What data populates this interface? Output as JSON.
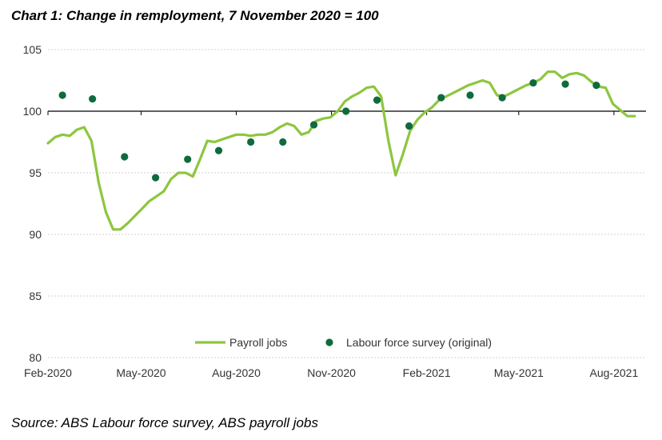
{
  "title": "Chart 1: Change in remployment, 7 November 2020 = 100",
  "source": "Source: ABS Labour force survey, ABS payroll jobs",
  "colors": {
    "payroll_line": "#8dc63f",
    "lfs_dot": "#0f6b3c",
    "grid": "#d0d0d0",
    "baseline": "#000000"
  },
  "chart_data": {
    "type": "line",
    "title": "Chart 1: Change in remployment, 7 November 2020 = 100",
    "xlabel": "",
    "ylabel": "",
    "ylim": [
      80,
      105
    ],
    "yticks": [
      80,
      85,
      90,
      95,
      100,
      105
    ],
    "ytick_labels": [
      "80",
      "85",
      "90",
      "95",
      "100",
      "105"
    ],
    "x_axis": "date",
    "xlim": [
      "2020-02-01",
      "2021-09-01"
    ],
    "xticks": [
      "2020-02-01",
      "2020-05-01",
      "2020-08-01",
      "2020-11-01",
      "2021-02-01",
      "2021-05-01",
      "2021-08-01"
    ],
    "xtick_labels": [
      "Feb-2020",
      "May-2020",
      "Aug-2020",
      "Nov-2020",
      "Feb-2021",
      "May-2021",
      "Aug-2021"
    ],
    "grid": true,
    "reference_line": 100,
    "legend_position": "bottom-center",
    "series": [
      {
        "name": "Payroll jobs",
        "style": "line",
        "x": [
          "2020-02-01",
          "2020-02-08",
          "2020-02-15",
          "2020-02-22",
          "2020-02-29",
          "2020-03-07",
          "2020-03-14",
          "2020-03-21",
          "2020-03-28",
          "2020-04-04",
          "2020-04-11",
          "2020-04-18",
          "2020-04-25",
          "2020-05-02",
          "2020-05-09",
          "2020-05-16",
          "2020-05-23",
          "2020-05-30",
          "2020-06-06",
          "2020-06-13",
          "2020-06-20",
          "2020-06-27",
          "2020-07-04",
          "2020-07-11",
          "2020-07-18",
          "2020-07-25",
          "2020-08-01",
          "2020-08-08",
          "2020-08-15",
          "2020-08-22",
          "2020-08-29",
          "2020-09-05",
          "2020-09-12",
          "2020-09-19",
          "2020-09-26",
          "2020-10-03",
          "2020-10-10",
          "2020-10-17",
          "2020-10-24",
          "2020-10-31",
          "2020-11-07",
          "2020-11-14",
          "2020-11-21",
          "2020-11-28",
          "2020-12-05",
          "2020-12-12",
          "2020-12-19",
          "2020-12-26",
          "2021-01-02",
          "2021-01-09",
          "2021-01-16",
          "2021-01-23",
          "2021-01-30",
          "2021-02-06",
          "2021-02-13",
          "2021-02-20",
          "2021-02-27",
          "2021-03-06",
          "2021-03-13",
          "2021-03-20",
          "2021-03-27",
          "2021-04-03",
          "2021-04-10",
          "2021-04-17",
          "2021-04-24",
          "2021-05-01",
          "2021-05-08",
          "2021-05-15",
          "2021-05-22",
          "2021-05-29",
          "2021-06-05",
          "2021-06-12",
          "2021-06-19",
          "2021-06-26",
          "2021-07-03",
          "2021-07-10",
          "2021-07-17",
          "2021-07-24",
          "2021-07-31",
          "2021-08-07",
          "2021-08-14",
          "2021-08-21"
        ],
        "y": [
          97.4,
          97.9,
          98.1,
          98.0,
          98.5,
          98.7,
          97.6,
          94.2,
          91.8,
          90.4,
          90.4,
          90.9,
          91.5,
          92.1,
          92.7,
          93.1,
          93.5,
          94.5,
          95.0,
          95.0,
          94.7,
          96.1,
          97.6,
          97.5,
          97.7,
          97.9,
          98.1,
          98.1,
          98.0,
          98.1,
          98.1,
          98.3,
          98.7,
          99.0,
          98.8,
          98.1,
          98.3,
          99.2,
          99.4,
          99.5,
          100.0,
          100.8,
          101.2,
          101.5,
          101.9,
          102.0,
          101.2,
          97.6,
          94.8,
          96.5,
          98.4,
          99.3,
          99.9,
          100.3,
          100.9,
          101.2,
          101.5,
          101.8,
          102.1,
          102.3,
          102.5,
          102.3,
          101.3,
          101.2,
          101.5,
          101.8,
          102.1,
          102.3,
          102.6,
          103.2,
          103.2,
          102.7,
          103.0,
          103.1,
          102.9,
          102.4,
          102.0,
          101.9,
          100.6,
          100.1,
          99.6,
          99.6
        ]
      },
      {
        "name": "Labour force survey (original)",
        "style": "markers",
        "x": [
          "2020-02-15",
          "2020-03-15",
          "2020-04-15",
          "2020-05-15",
          "2020-06-15",
          "2020-07-15",
          "2020-08-15",
          "2020-09-15",
          "2020-10-15",
          "2020-11-15",
          "2020-12-15",
          "2021-01-15",
          "2021-02-15",
          "2021-03-15",
          "2021-04-15",
          "2021-05-15",
          "2021-06-15",
          "2021-07-15"
        ],
        "y": [
          101.3,
          101.0,
          96.3,
          94.6,
          96.1,
          96.8,
          97.5,
          97.5,
          98.9,
          100.0,
          100.9,
          98.8,
          101.1,
          101.3,
          101.1,
          102.3,
          102.2,
          102.1
        ]
      }
    ]
  }
}
